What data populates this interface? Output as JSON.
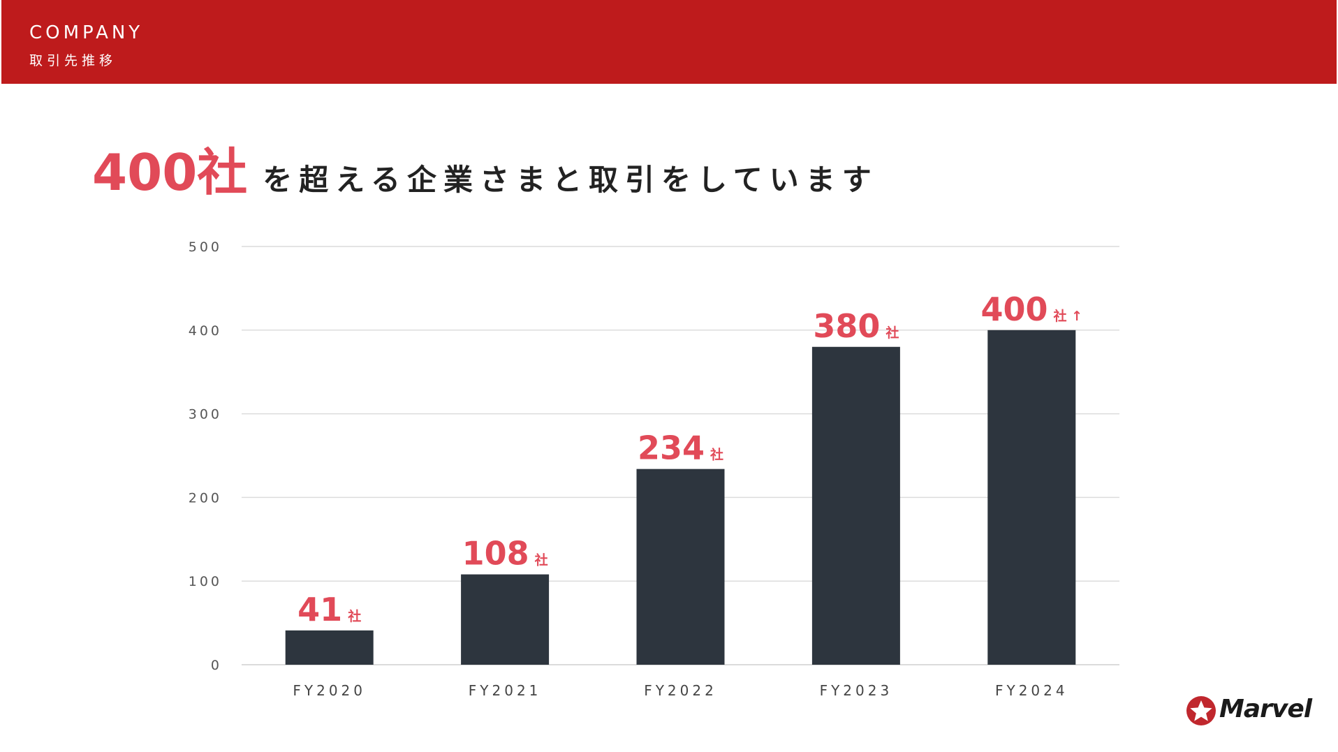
{
  "header": {
    "title": "COMPANY",
    "subtitle": "取引先推移",
    "color": "#be1b1c"
  },
  "headline": {
    "highlight": "400社",
    "text": "を超える企業さまと取引をしています"
  },
  "chart_data": {
    "type": "bar",
    "categories": [
      "FY2020",
      "FY2021",
      "FY2022",
      "FY2023",
      "FY2024"
    ],
    "values": [
      41,
      108,
      234,
      380,
      400
    ],
    "labels": [
      {
        "number": "41",
        "unit": "社"
      },
      {
        "number": "108",
        "unit": "社"
      },
      {
        "number": "234",
        "unit": "社"
      },
      {
        "number": "380",
        "unit": "社"
      },
      {
        "number": "400",
        "unit": "社",
        "suffix": "↑"
      }
    ],
    "yticks": [
      "0",
      "100",
      "200",
      "300",
      "400",
      "500"
    ],
    "ylim": [
      0,
      500
    ],
    "grid": true,
    "bar_color": "#2d353e",
    "label_color": "#e14a58"
  },
  "logo": {
    "text": "Marvel",
    "icon": "star-circle-icon"
  }
}
